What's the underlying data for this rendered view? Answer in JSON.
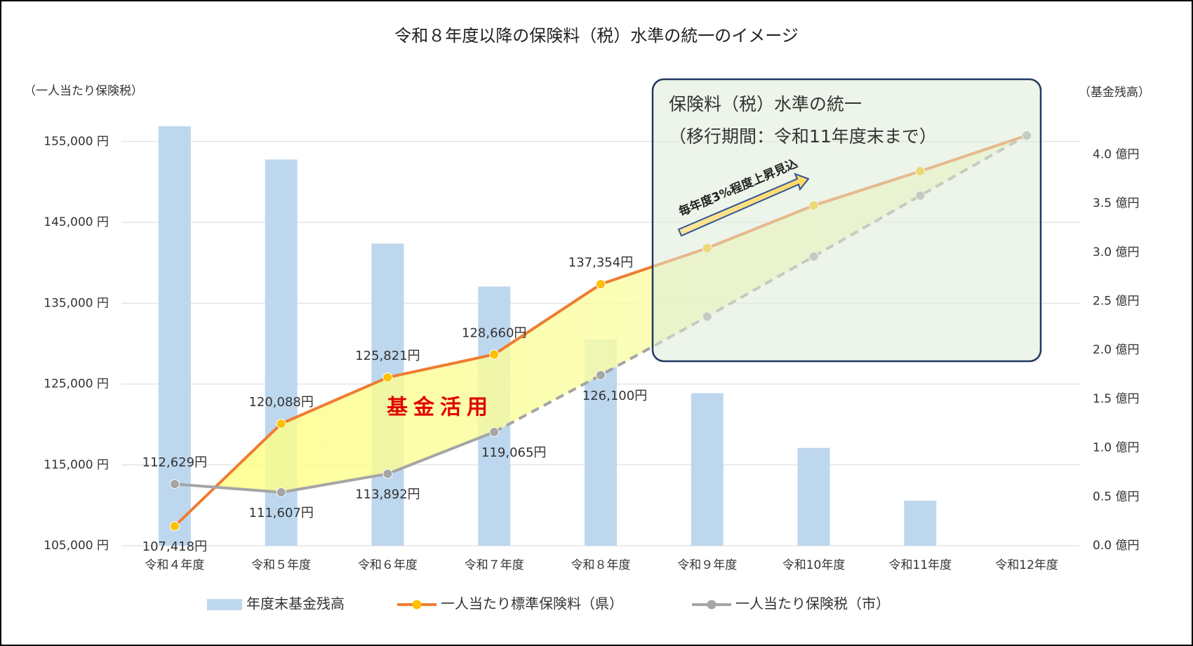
{
  "chart_data": {
    "type": "bar_line",
    "title": "令和８年度以降の保険料（税）水準の統一のイメージ",
    "y_label": "（一人当たり保険税）",
    "y2_label": "（基金残高）",
    "categories": [
      "令和４年度",
      "令和５年度",
      "令和６年度",
      "令和７年度",
      "令和８年度",
      "令和９年度",
      "令和10年度",
      "令和11年度",
      "令和12年度"
    ],
    "ylim": [
      105000,
      157500
    ],
    "yticks": [
      {
        "value": 105000,
        "label": "105,000 円"
      },
      {
        "value": 115000,
        "label": "115,000 円"
      },
      {
        "value": 125000,
        "label": "125,000 円"
      },
      {
        "value": 135000,
        "label": "135,000 円"
      },
      {
        "value": 145000,
        "label": "145,000 円"
      },
      {
        "value": 155000,
        "label": "155,000 円"
      }
    ],
    "y2lim": [
      0,
      4.34
    ],
    "y2ticks": [
      {
        "value": 0,
        "label": "0.0 億円"
      },
      {
        "value": 0.5,
        "label": "0.5 億円"
      },
      {
        "value": 1,
        "label": "1.0 億円"
      },
      {
        "value": 1.5,
        "label": "1.5 億円"
      },
      {
        "value": 2,
        "label": "2.0 億円"
      },
      {
        "value": 2.5,
        "label": "2.5 億円"
      },
      {
        "value": 3,
        "label": "3.0 億円"
      },
      {
        "value": 3.5,
        "label": "3.5 億円"
      },
      {
        "value": 4,
        "label": "4.0 億円"
      }
    ],
    "grid": true,
    "series": [
      {
        "name": "年度末基金残高",
        "kind": "bar",
        "axis": "y2",
        "color": "#bdd7ee",
        "values": [
          4.29,
          3.95,
          3.09,
          2.65,
          2.11,
          1.56,
          1.0,
          0.46,
          null
        ]
      },
      {
        "name": "一人当たり標準保険料（県）",
        "kind": "line",
        "color": "#ed7d31",
        "marker_color": "#ffc000",
        "values": [
          107418,
          120088,
          125821,
          128660,
          137354,
          141817,
          147090,
          151328,
          155753
        ],
        "value_labels": [
          "107,418円",
          "120,088円",
          "125,821円",
          "128,660円",
          "137,354円",
          null,
          null,
          null,
          null
        ]
      },
      {
        "name": "一人当たり保険税（市）",
        "kind": "line",
        "color": "#a5a5a5",
        "marker_color": "#a5a5a5",
        "dash_from": 3,
        "values": [
          112629,
          111607,
          113892,
          119065,
          126100,
          133343,
          140782,
          148314,
          155753
        ],
        "value_labels": [
          "112,629円",
          "111,607円",
          "113,892円",
          "119,065円",
          "126,100円",
          null,
          null,
          null,
          null
        ]
      }
    ],
    "annotations": {
      "fund": "基金活用",
      "box_title": "保険料（税）水準の統一",
      "box_subtitle": "（移行期間：令和11年度末まで）",
      "arrow": "毎年度3%程度上昇見込"
    }
  }
}
